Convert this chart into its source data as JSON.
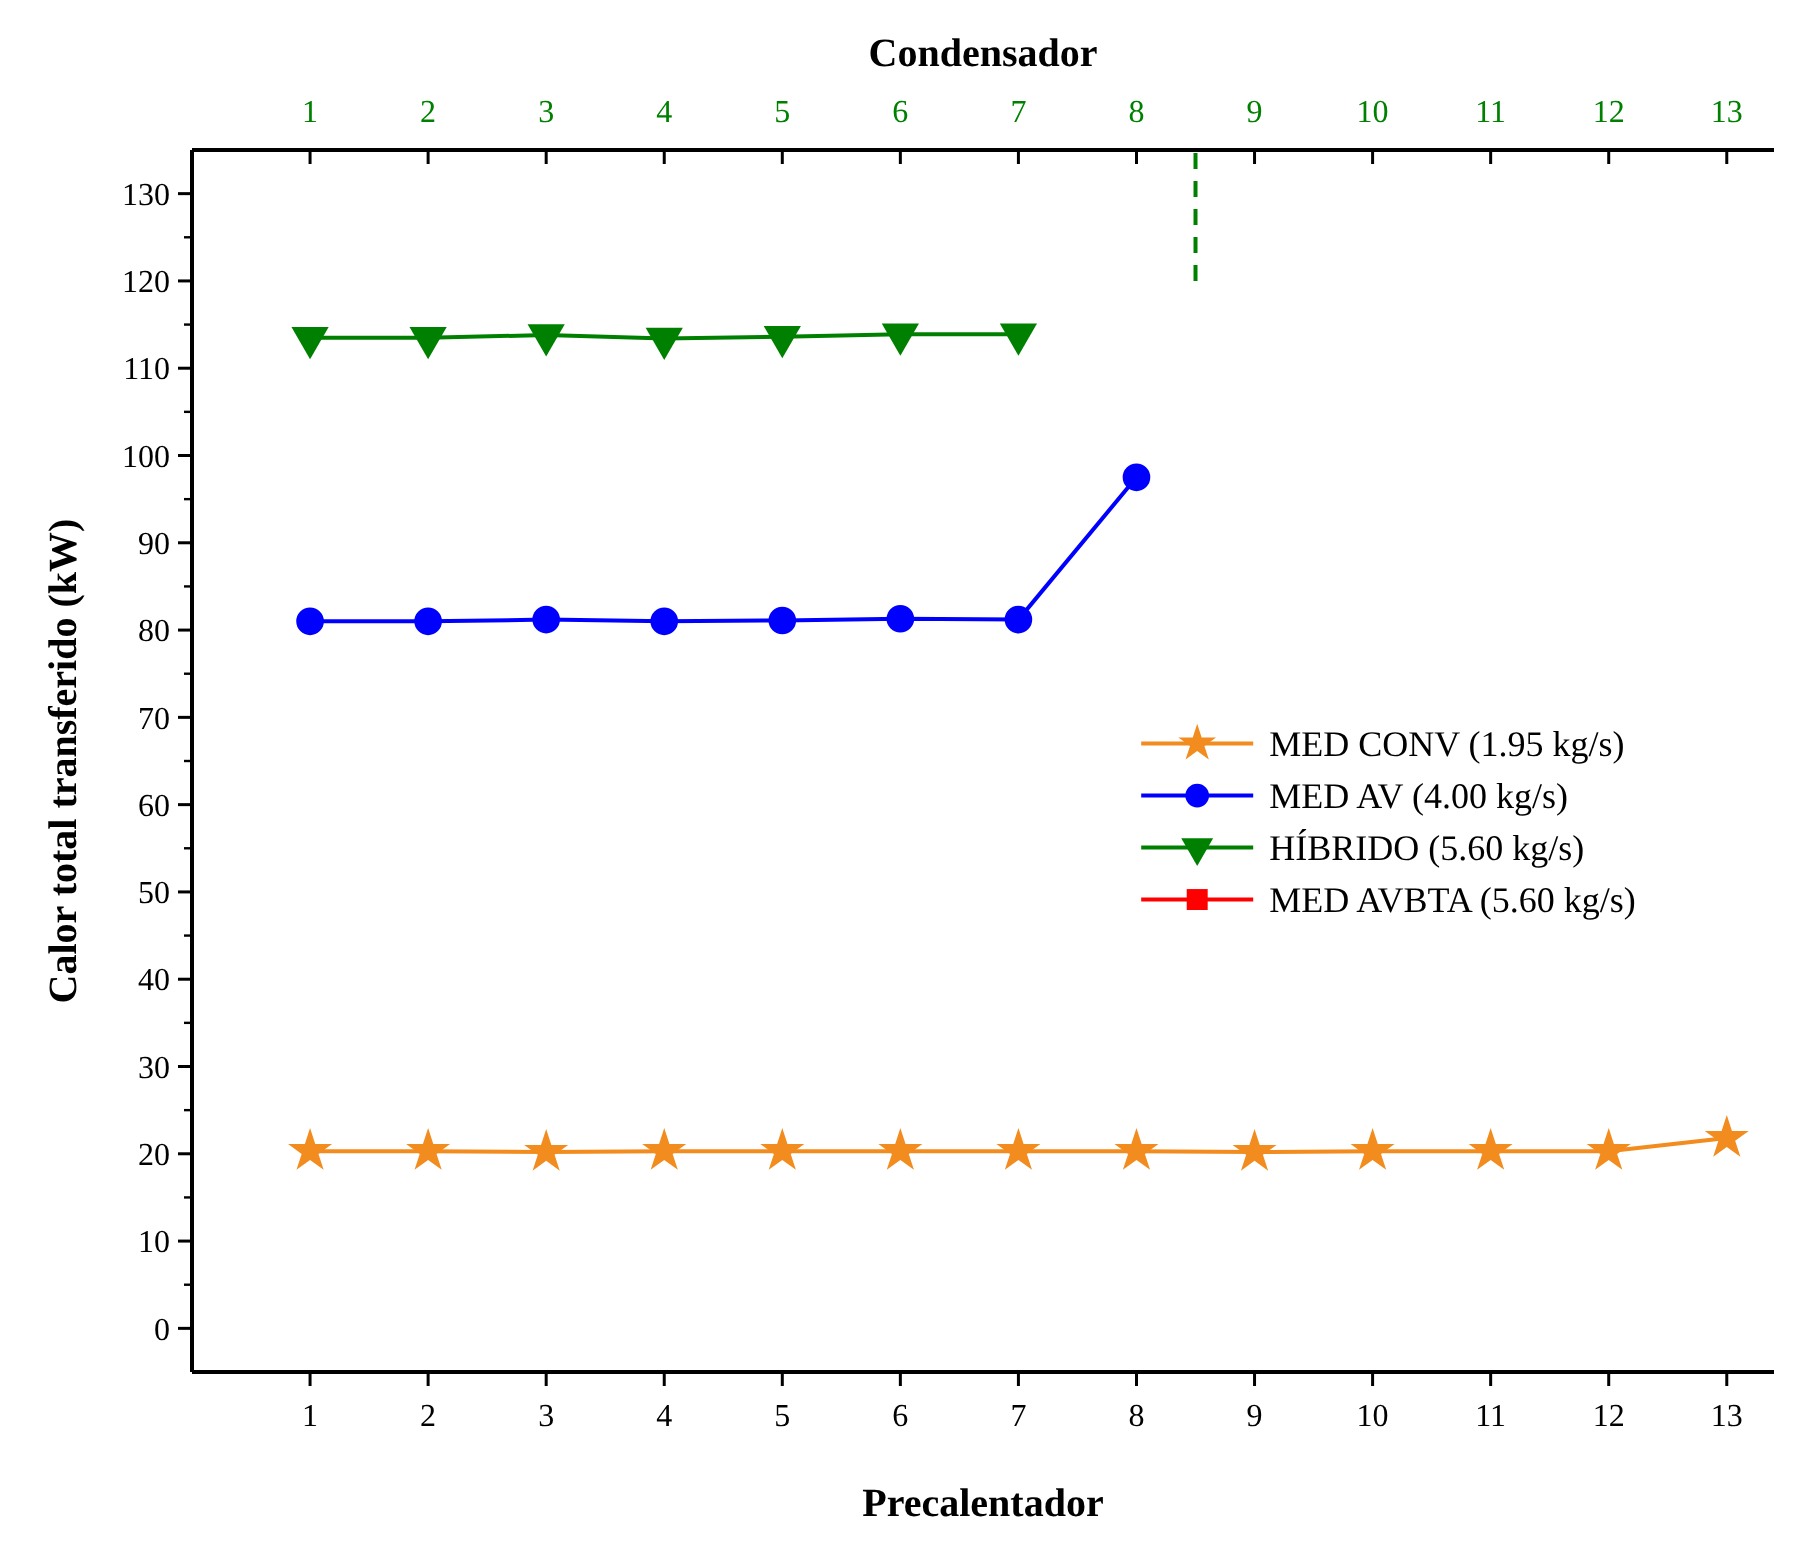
{
  "chart_data": {
    "type": "line",
    "xlabel": "Precalentador",
    "ylabel": "Calor total transferido (kW)",
    "x2label": "Condensador",
    "x": [
      1,
      2,
      3,
      4,
      5,
      6,
      7,
      8,
      9,
      10,
      11,
      12,
      13
    ],
    "xlim": [
      0,
      13.4
    ],
    "xticks": [
      1,
      2,
      3,
      4,
      5,
      6,
      7,
      8,
      9,
      10,
      11,
      12,
      13
    ],
    "x2lim": [
      0,
      13.4
    ],
    "x2ticks": [
      1,
      2,
      3,
      4,
      5,
      6,
      7,
      8,
      9,
      10,
      11,
      12,
      13
    ],
    "ylim": [
      -5,
      135
    ],
    "yticks": [
      0,
      10,
      20,
      30,
      40,
      50,
      60,
      70,
      80,
      90,
      100,
      110,
      120,
      130
    ],
    "grid": false,
    "legend": "right",
    "line_style": "solid",
    "series": [
      {
        "name": "MED CONV (1.95 kg/s)",
        "color": "#f28c1e",
        "marker": "star",
        "values": [
          20.3,
          20.3,
          20.2,
          20.3,
          20.3,
          20.3,
          20.3,
          20.3,
          20.2,
          20.3,
          20.3,
          20.3,
          21.8
        ]
      },
      {
        "name": "MED AV (4.00 kg/s)",
        "color": "#0000ff",
        "marker": "circle",
        "values": [
          81.0,
          81.0,
          81.2,
          81.0,
          81.1,
          81.3,
          81.2,
          97.5,
          null,
          null,
          null,
          null,
          null
        ]
      },
      {
        "name": "HÍBRIDO (5.60 kg/s)",
        "color": "#008000",
        "marker": "triangle-down",
        "values": [
          113.5,
          113.5,
          113.8,
          113.4,
          113.6,
          113.9,
          113.9,
          null,
          null,
          null,
          null,
          null,
          null
        ]
      },
      {
        "name": "MED AVBTA (5.60 kg/s)",
        "color": "#ff0000",
        "marker": "square",
        "values": [
          null,
          null,
          null,
          null,
          null,
          null,
          null,
          null,
          null,
          null,
          null,
          null,
          null
        ]
      },
      {
        "type": "line",
        "x": [
          8.5,
          8.5
        ],
        "values": [
          120,
          135
        ],
        "color": "#008000",
        "marker": "none",
        "line_style": "dashed"
      }
    ]
  }
}
